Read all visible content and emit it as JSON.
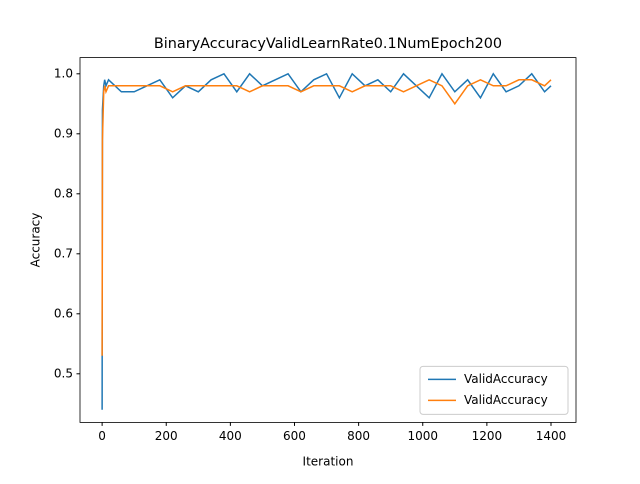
{
  "chart_data": {
    "type": "line",
    "title": "BinaryAccuracyValidLearnRate0.1NumEpoch200",
    "x_label": "Iteration",
    "y_label": "Accuracy",
    "x": [
      0,
      1,
      3,
      5,
      8,
      12,
      20,
      60,
      100,
      140,
      180,
      220,
      260,
      300,
      340,
      380,
      420,
      460,
      500,
      540,
      580,
      620,
      660,
      700,
      740,
      780,
      820,
      860,
      900,
      940,
      980,
      1020,
      1060,
      1100,
      1140,
      1180,
      1220,
      1260,
      1300,
      1340,
      1380,
      1400
    ],
    "series": [
      {
        "name": "ValidAccuracy",
        "color": "#1f77b4",
        "values": [
          0.44,
          0.94,
          0.96,
          0.98,
          0.99,
          0.98,
          0.99,
          0.97,
          0.97,
          0.98,
          0.99,
          0.96,
          0.98,
          0.97,
          0.99,
          1.0,
          0.97,
          1.0,
          0.98,
          0.99,
          1.0,
          0.97,
          0.99,
          1.0,
          0.96,
          1.0,
          0.98,
          0.99,
          0.97,
          1.0,
          0.98,
          0.96,
          1.0,
          0.97,
          0.99,
          0.96,
          1.0,
          0.97,
          0.98,
          1.0,
          0.97,
          0.98
        ]
      },
      {
        "name": "ValidAccuracy",
        "color": "#ff7f0e",
        "values": [
          0.53,
          0.89,
          0.93,
          0.97,
          0.98,
          0.97,
          0.98,
          0.98,
          0.98,
          0.98,
          0.98,
          0.97,
          0.98,
          0.98,
          0.98,
          0.98,
          0.98,
          0.97,
          0.98,
          0.98,
          0.98,
          0.97,
          0.98,
          0.98,
          0.98,
          0.97,
          0.98,
          0.98,
          0.98,
          0.97,
          0.98,
          0.99,
          0.98,
          0.95,
          0.98,
          0.99,
          0.98,
          0.98,
          0.99,
          0.99,
          0.98,
          0.99
        ]
      }
    ],
    "xlim": [
      -69,
      1478
    ],
    "ylim": [
      0.419,
      1.027
    ],
    "xticks": [
      0,
      200,
      400,
      600,
      800,
      1000,
      1200,
      1400
    ],
    "yticks": [
      0.5,
      0.6,
      0.7,
      0.8,
      0.9,
      {
        "value": 1.0,
        "label": "1.0"
      }
    ],
    "legend": "lower right",
    "grid": false
  }
}
